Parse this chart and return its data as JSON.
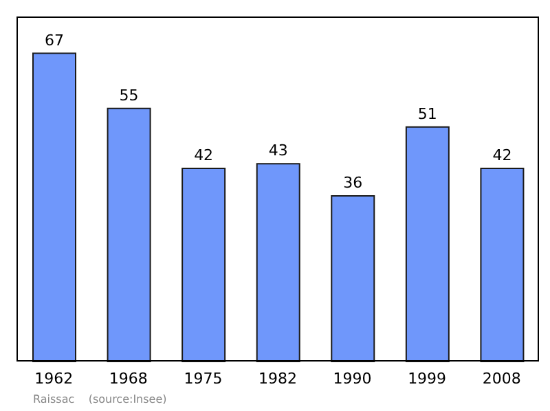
{
  "chart_data": {
    "type": "bar",
    "categories": [
      "1962",
      "1968",
      "1975",
      "1982",
      "1990",
      "1999",
      "2008"
    ],
    "values": [
      67,
      55,
      42,
      43,
      36,
      51,
      42
    ],
    "color": "#6f97fb",
    "data_labels": true,
    "annotations": [
      "Raissac    (source:Insee)"
    ]
  }
}
